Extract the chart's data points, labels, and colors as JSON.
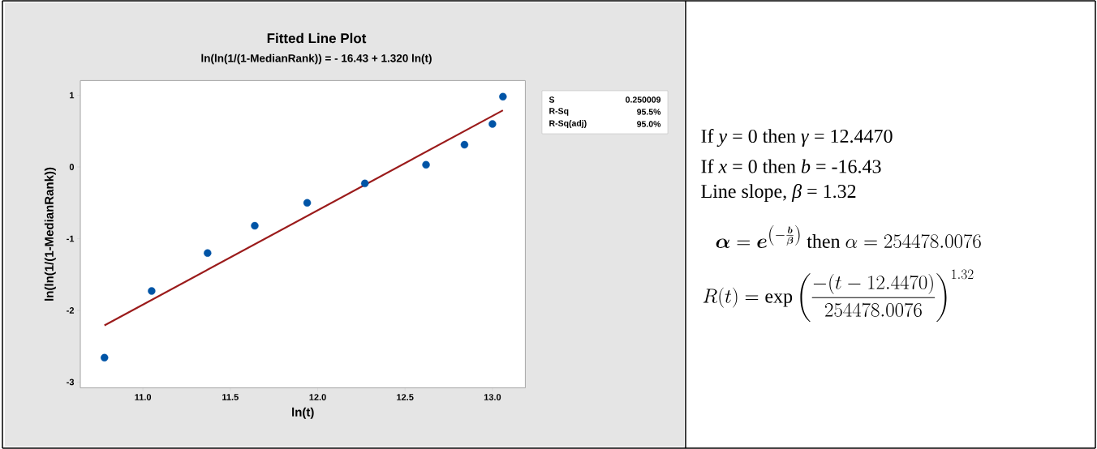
{
  "chart_data": {
    "type": "scatter",
    "title": "Fitted Line Plot",
    "subtitle": "ln(ln(1/(1-MedianRank)) = - 16.43 + 1.320 ln(t)",
    "xlabel": "ln(t)",
    "ylabel": "ln(ln(1/(1-MedianRank))",
    "xlim": [
      10.642,
      13.188
    ],
    "ylim": [
      -3.081,
      1.205
    ],
    "xticks": [
      {
        "value": 11,
        "label": "11.0"
      },
      {
        "value": 11.5,
        "label": "11.5"
      },
      {
        "value": 12,
        "label": "12.0"
      },
      {
        "value": 12.5,
        "label": "12.5"
      },
      {
        "value": 13,
        "label": "13.0"
      }
    ],
    "yticks": [
      -3,
      -2,
      -1,
      0,
      1
    ],
    "grid": false,
    "series": [
      {
        "marker": "circle",
        "color": "#0054a6",
        "x": [
          10.78,
          11.05,
          11.37,
          11.64,
          11.94,
          12.27,
          12.62,
          12.84,
          13.0,
          13.06
        ],
        "values": [
          -2.66,
          -1.73,
          -1.2,
          -0.82,
          -0.5,
          -0.23,
          0.03,
          0.31,
          0.6,
          0.98
        ]
      },
      {
        "type": "line",
        "marker": "none",
        "line_style": "solid",
        "color": "#9b1b1b",
        "x": [
          10.78,
          13.06
        ],
        "values": [
          -2.21,
          0.79
        ]
      }
    ],
    "annotations": [
      "S",
      "0.250009",
      "R-Sq",
      "95.5%",
      "R-Sq(adj)",
      "95.0%",
      "If *y* = 0 then *γ* = 12.4470",
      "If *x* = 0 then *b* = -16.43",
      "Line slope, *β* = 1.32",
      "\\boldsymbol{\\alpha} = \\boldsymbol{e}^{\\left(-\\frac{\\boldsymbol{b}}{\\boldsymbol{\\beta}}\\right)}\\ \\mathrm{then}\\ \\alpha = 254478.0076",
      "R(t) = \\exp\\left(\\frac{-(t-12.4470)}{254478.0076}\\right)^{1.32}"
    ]
  }
}
